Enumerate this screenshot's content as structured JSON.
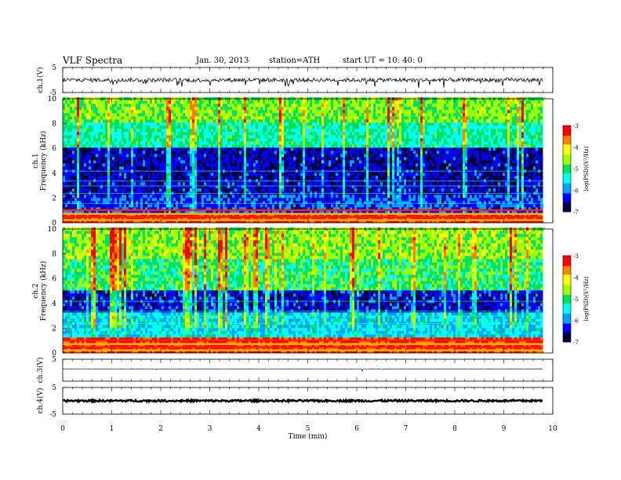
{
  "header": {
    "title": "VLF  Spectra",
    "date": "Jan. 30, 2013",
    "station": "station=ATH",
    "start_ut": "start  UT  =   10: 40: 0"
  },
  "chart_data": [
    {
      "panel": "ch1-waveform",
      "type": "line",
      "ylabel": "ch.1(V)",
      "ylim": [
        -5,
        5
      ],
      "yticks": [
        "5",
        "-5"
      ],
      "xlim": [
        0,
        10
      ],
      "data_extent_min": 9.8,
      "description_of_series": "dense noisy waveform near -0.5 V with frequent negative spikes to about -3 V"
    },
    {
      "panel": "ch1-spectrogram",
      "type": "heatmap",
      "ylabel": "Frequency  (kHz)",
      "channel_label": "ch.1",
      "ylim": [
        0,
        10
      ],
      "yticks": [
        "10",
        "8",
        "6",
        "4",
        "2",
        "0"
      ],
      "xlim": [
        0,
        10
      ],
      "zlim": [
        -7,
        -3
      ],
      "colorbar_label": "log(PSD)(V²/Hz)",
      "colorbar_ticks": [
        "-3",
        "-4",
        "-5",
        "-6",
        "-7"
      ],
      "bands_khz": [
        {
          "from": 0,
          "to": 0.8,
          "level": -3.3
        },
        {
          "from": 0.8,
          "to": 2.2,
          "level": -6.2
        },
        {
          "from": 2.2,
          "to": 6.0,
          "level": -6.5
        },
        {
          "from": 6.0,
          "to": 8.0,
          "level": -5.2
        },
        {
          "from": 8.0,
          "to": 10.0,
          "level": -4.7
        }
      ],
      "colormap": [
        "#000040",
        "#0000ff",
        "#00a0ff",
        "#00ffff",
        "#00e060",
        "#a0ff00",
        "#ffff00",
        "#ff8000",
        "#ff0000",
        "#ffffff"
      ]
    },
    {
      "panel": "ch2-spectrogram",
      "type": "heatmap",
      "ylabel": "Frequency  (kHz)",
      "channel_label": "ch.2",
      "ylim": [
        0,
        10
      ],
      "yticks": [
        "10",
        "8",
        "6",
        "4",
        "2",
        "0"
      ],
      "xlim": [
        0,
        10
      ],
      "zlim": [
        -7,
        -3
      ],
      "colorbar_label": "log(PSD)(V²/Hz)",
      "colorbar_ticks": [
        "-3",
        "-4",
        "-5",
        "-6",
        "-7"
      ],
      "bands_khz": [
        {
          "from": 0,
          "to": 1.2,
          "level": -3.4
        },
        {
          "from": 1.2,
          "to": 3.2,
          "level": -5.6
        },
        {
          "from": 3.2,
          "to": 5.0,
          "level": -6.4
        },
        {
          "from": 5.0,
          "to": 7.5,
          "level": -5.0
        },
        {
          "from": 7.5,
          "to": 10.0,
          "level": -4.6
        }
      ]
    },
    {
      "panel": "ch3-waveform",
      "type": "line",
      "ylabel": "ch.3(V)",
      "ylim": [
        -5,
        5
      ],
      "yticks": [
        "5"
      ],
      "xlim": [
        0,
        10
      ]
    },
    {
      "panel": "ch4-waveform",
      "type": "line",
      "ylabel": "ch.4(V)",
      "ylim": [
        -5,
        5
      ],
      "yticks": [
        "5",
        "-5"
      ],
      "xlim": [
        0,
        10
      ]
    }
  ],
  "xaxis": {
    "label": "Time  (min)",
    "ticks": [
      "0",
      "1",
      "2",
      "3",
      "4",
      "5",
      "6",
      "7",
      "8",
      "9",
      "10"
    ]
  }
}
